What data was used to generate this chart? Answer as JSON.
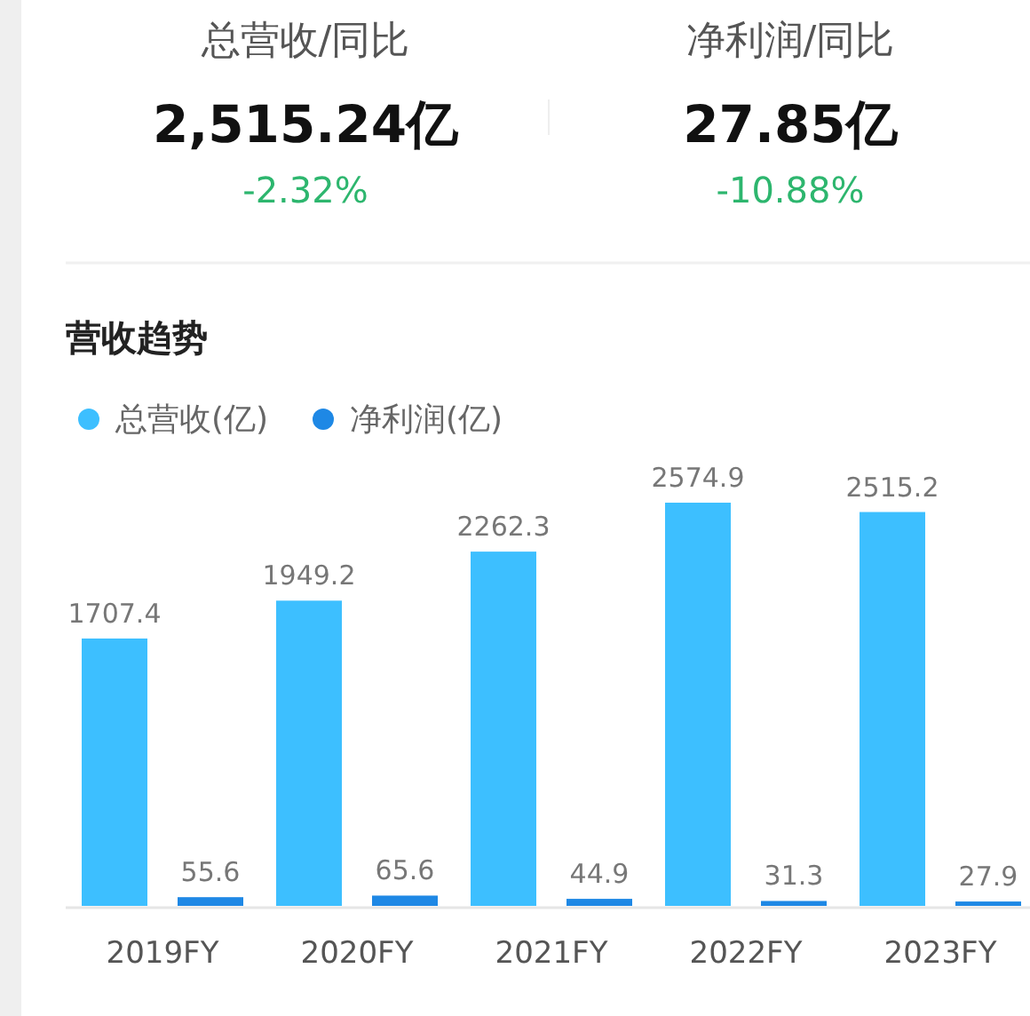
{
  "chart_data": [
    {
      "type": "other",
      "annotations": [
        "总营收/同比",
        "2,515.24亿",
        "-2.32%",
        "净利润/同比",
        "27.85亿",
        "-10.88%"
      ]
    },
    {
      "type": "bar",
      "title": "营收趋势",
      "categories": [
        "2019FY",
        "2020FY",
        "2021FY",
        "2022FY",
        "2023FY"
      ],
      "series": [
        {
          "name": "总营收(亿)",
          "color": "#3dbfff",
          "values": [
            1707.4,
            1949.2,
            2262.3,
            2574.9,
            2515.2
          ]
        },
        {
          "name": "净利润(亿)",
          "color": "#1e88e5",
          "values": [
            55.6,
            65.6,
            44.9,
            31.3,
            27.9
          ]
        }
      ],
      "data_labels": true,
      "legend": "top left",
      "grid": false
    }
  ]
}
